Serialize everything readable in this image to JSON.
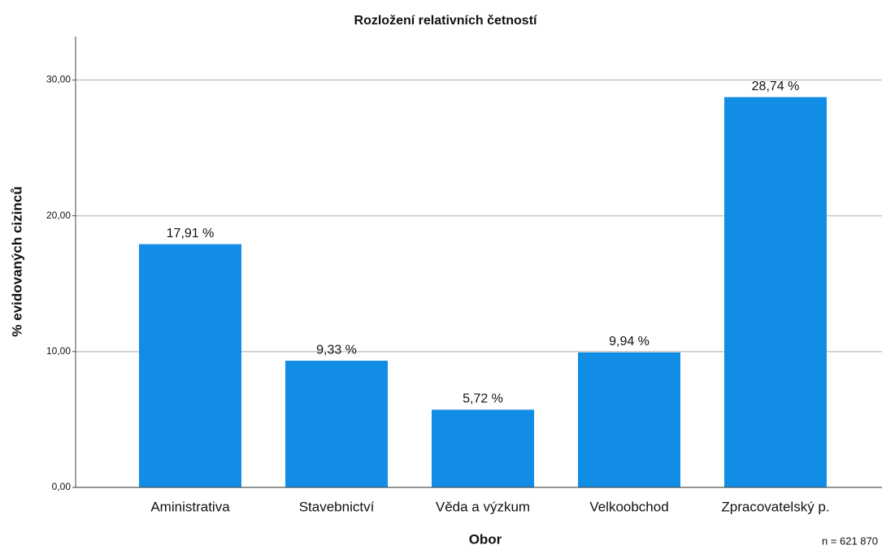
{
  "chart_data": {
    "type": "bar",
    "title": "Rozložení relativních četností",
    "x_label": "Obor",
    "y_label": "% evidovaných cizinců",
    "annotation": "n = 621 870",
    "categories": [
      "Aministrativa",
      "Stavebnictví",
      "Věda a výzkum",
      "Velkoobchod",
      "Zpracovatelský p."
    ],
    "values": [
      17.91,
      9.33,
      5.72,
      9.94,
      28.74
    ],
    "value_labels": [
      "17,91 %",
      "9,33 %",
      "5,72 %",
      "9,94 %",
      "28,74 %"
    ],
    "color": "#128de6",
    "ylim": [
      0,
      33.2
    ],
    "yticks": [
      {
        "value": 0,
        "label": "0,00"
      },
      {
        "value": 10,
        "label": "10,00"
      },
      {
        "value": 20,
        "label": "20,00"
      },
      {
        "value": 30,
        "label": "30,00"
      }
    ],
    "grid": true
  }
}
